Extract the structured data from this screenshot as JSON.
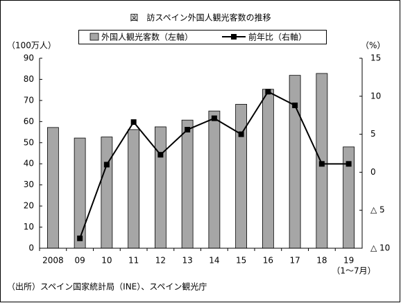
{
  "chart_data": {
    "type": "bar",
    "title": "図　訪スペイン外国人観光客数の推移",
    "y_label": "（100万人）",
    "y2_label": "（%）",
    "annotation": "（1～7月）",
    "source": "（出所）スペイン国家統計局（INE）、スペイン観光庁",
    "categories": [
      "2008",
      "09",
      "10",
      "11",
      "12",
      "13",
      "14",
      "15",
      "16",
      "17",
      "18",
      "19"
    ],
    "series": [
      {
        "name": "外国人観光客数（左軸）",
        "type": "bar",
        "color": "#a6a6a6",
        "values": [
          57.2,
          52.2,
          52.7,
          56.2,
          57.5,
          60.7,
          65.0,
          68.2,
          75.3,
          81.9,
          82.8,
          48.0
        ]
      },
      {
        "name": "前年比（右軸）",
        "type": "line",
        "axis": "y2",
        "color": "#000000",
        "values": [
          null,
          -8.7,
          1.0,
          6.6,
          2.3,
          5.6,
          7.1,
          5.0,
          10.6,
          8.8,
          1.1,
          1.1
        ]
      }
    ],
    "ylim": [
      0,
      90
    ],
    "yticks": [
      0,
      10,
      20,
      30,
      40,
      50,
      60,
      70,
      80,
      90
    ],
    "y2lim": [
      -10,
      15
    ],
    "y2ticks": [
      {
        "value": -10,
        "label": "△ 10"
      },
      {
        "value": -5,
        "label": "△ 5"
      },
      0,
      5,
      10,
      15
    ],
    "legend": "top",
    "grid": false
  }
}
